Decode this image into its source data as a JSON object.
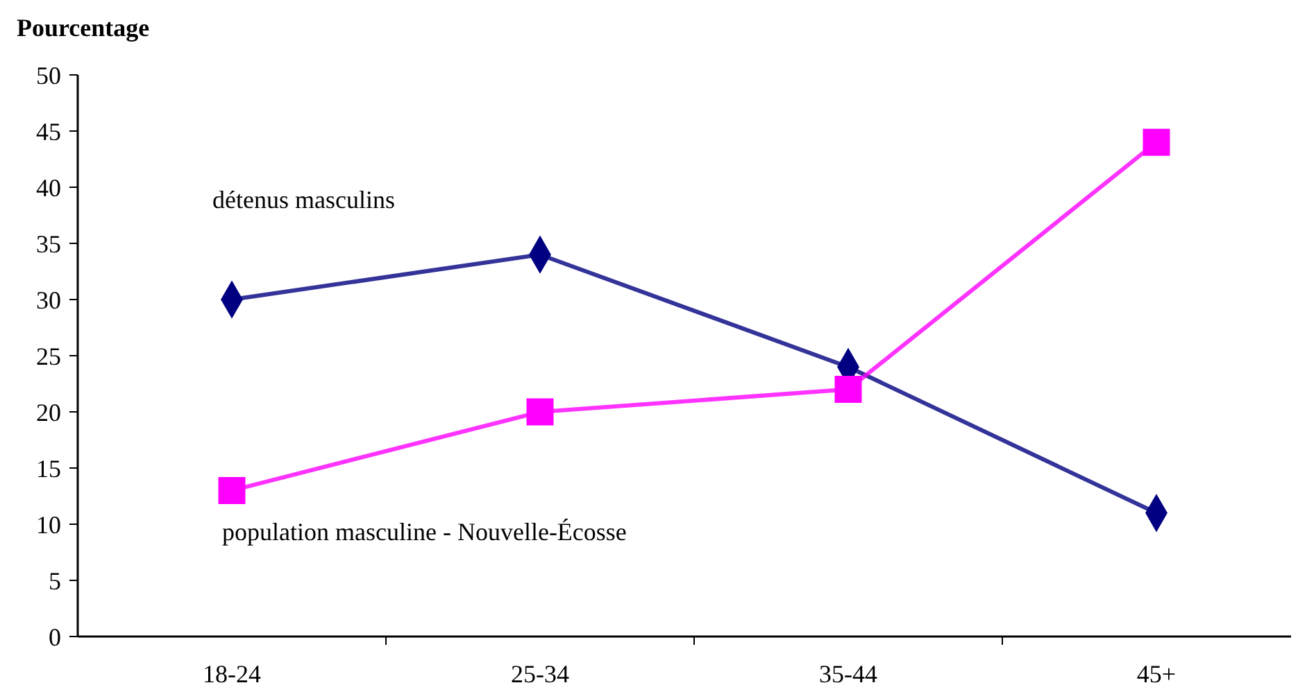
{
  "chart_data": {
    "type": "line",
    "ylabel": "Pourcentage",
    "categories": [
      "18-24",
      "25-34",
      "35-44",
      "45+"
    ],
    "series": [
      {
        "name": "détenus masculins",
        "color": "#000080",
        "marker": "diamond",
        "values": [
          30,
          34,
          24,
          11
        ]
      },
      {
        "name": "population masculine - Nouvelle-Écosse",
        "color": "#ff00ff",
        "marker": "square",
        "values": [
          13,
          20,
          22,
          44
        ]
      }
    ],
    "ylim": [
      0,
      50
    ],
    "yticks": [
      0,
      5,
      10,
      15,
      20,
      25,
      30,
      35,
      40,
      45,
      50
    ],
    "grid": false
  }
}
